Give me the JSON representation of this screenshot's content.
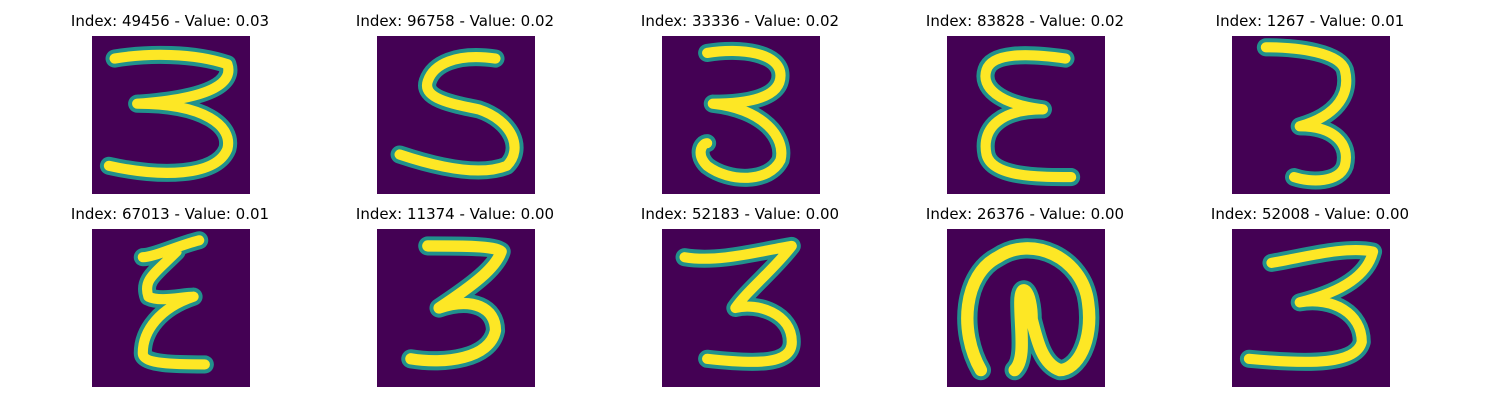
{
  "colors": {
    "background": "#440154",
    "stroke": "#fde725",
    "edge": "#21918c"
  },
  "panels": [
    {
      "label": "Index: 49456 - Value: 0.03",
      "digit_glyph": "3"
    },
    {
      "label": "Index: 96758 - Value: 0.02",
      "digit_glyph": "5"
    },
    {
      "label": "Index: 33336 - Value: 0.02",
      "digit_glyph": "3"
    },
    {
      "label": "Index: 83828 - Value: 0.02",
      "digit_glyph": "reversed-3"
    },
    {
      "label": "Index: 1267 - Value: 0.01",
      "digit_glyph": "3"
    },
    {
      "label": "Index: 67013 - Value: 0.01",
      "digit_glyph": "reversed-3"
    },
    {
      "label": "Index: 11374 - Value: 0.00",
      "digit_glyph": "3"
    },
    {
      "label": "Index: 52183 - Value: 0.00",
      "digit_glyph": "3"
    },
    {
      "label": "Index: 26376 - Value: 0.00",
      "digit_glyph": "loop"
    },
    {
      "label": "Index: 52008 - Value: 0.00",
      "digit_glyph": "3"
    }
  ]
}
